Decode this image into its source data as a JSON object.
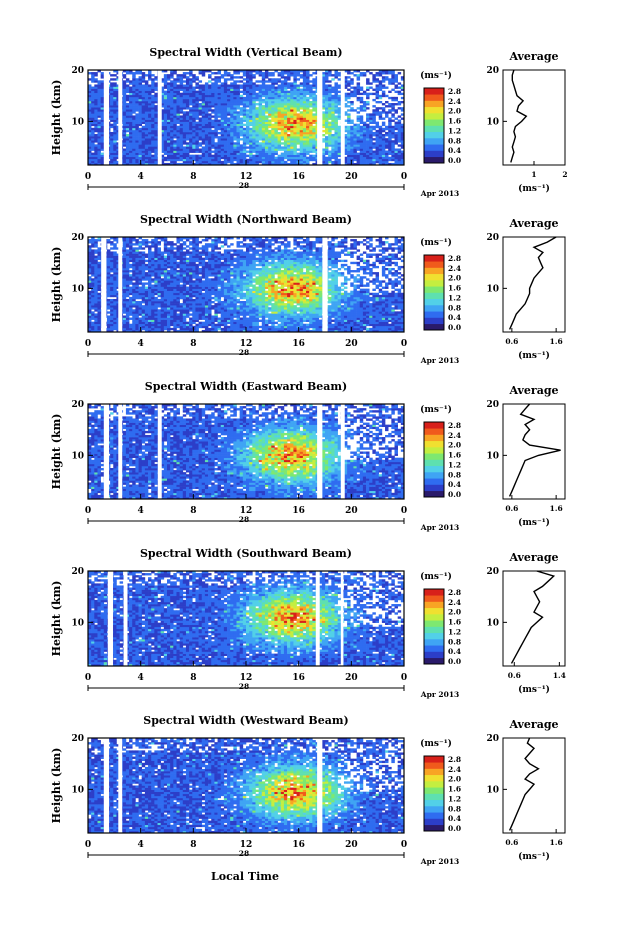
{
  "figure": {
    "bottom_xlabel": "Local Time",
    "date_label": "Apr 2013",
    "day_label": "28",
    "colorbar_unit": "(ms⁻¹)",
    "colorbar_ticks": [
      "2.8",
      "2.4",
      "2.0",
      "1.6",
      "1.2",
      "0.8",
      "0.4",
      "0.0"
    ],
    "colormap": [
      "#2a1a6a",
      "#2c3ec8",
      "#2f6cf0",
      "#3fa4f4",
      "#52d0e8",
      "#5ee0b0",
      "#7ee870",
      "#c4ee40",
      "#f0e030",
      "#f8a424",
      "#f05a1c",
      "#d8201a"
    ],
    "average_title": "Average",
    "average_xlabel": "(ms⁻¹)"
  },
  "chart_data": [
    {
      "type": "heatmap",
      "title": "Spectral Width (Vertical Beam)",
      "ylabel": "Height (km)",
      "xlabel": "Local Time",
      "xlim": [
        0,
        24
      ],
      "ylim": [
        1.5,
        20
      ],
      "x_ticks": [
        "0",
        "4",
        "8",
        "12",
        "16",
        "20",
        "0"
      ],
      "y_ticks": [
        "20",
        "10"
      ],
      "data_gaps_hours": [
        [
          1.2,
          1.6
        ],
        [
          2.3,
          2.6
        ],
        [
          5.3,
          5.6
        ],
        [
          17.4,
          17.8
        ],
        [
          19.2,
          19.5
        ]
      ],
      "hotspot": {
        "hour": 15.8,
        "height_km": 9.5,
        "value": 2.8
      },
      "average_profile": {
        "xlabel": "(ms⁻¹)",
        "x_ticks": [
          "1",
          "2"
        ],
        "xlim": [
          0,
          2
        ],
        "height_km": [
          2,
          3,
          4,
          5,
          6,
          7,
          8,
          9,
          10,
          11,
          12,
          13,
          14,
          15,
          16,
          17,
          18,
          19,
          20
        ],
        "value": [
          0.25,
          0.3,
          0.35,
          0.3,
          0.35,
          0.4,
          0.35,
          0.4,
          0.6,
          0.75,
          0.45,
          0.5,
          0.65,
          0.45,
          0.4,
          0.35,
          0.3,
          0.3,
          0.35
        ]
      }
    },
    {
      "type": "heatmap",
      "title": "Spectral Width (Northward Beam)",
      "ylabel": "Height (km)",
      "xlabel": "Local Time",
      "xlim": [
        0,
        24
      ],
      "ylim": [
        1.5,
        20
      ],
      "x_ticks": [
        "0",
        "4",
        "8",
        "12",
        "16",
        "20",
        "0"
      ],
      "y_ticks": [
        "20",
        "10"
      ],
      "data_gaps_hours": [
        [
          1.0,
          1.4
        ],
        [
          2.3,
          2.6
        ],
        [
          17.8,
          18.2
        ]
      ],
      "hotspot": {
        "hour": 15.5,
        "height_km": 10,
        "value": 2.8
      },
      "average_profile": {
        "xlabel": "(ms⁻¹)",
        "x_ticks": [
          "0.6",
          "1.6"
        ],
        "xlim": [
          0.4,
          1.8
        ],
        "height_km": [
          2,
          3,
          4,
          5,
          6,
          7,
          8,
          9,
          10,
          11,
          12,
          13,
          14,
          15,
          16,
          17,
          18,
          19,
          20
        ],
        "value": [
          0.55,
          0.6,
          0.65,
          0.7,
          0.8,
          0.9,
          0.95,
          1.0,
          1.0,
          1.05,
          1.1,
          1.2,
          1.3,
          1.25,
          1.2,
          1.3,
          1.1,
          1.4,
          1.6
        ]
      }
    },
    {
      "type": "heatmap",
      "title": "Spectral Width (Eastward Beam)",
      "ylabel": "Height (km)",
      "xlabel": "Local Time",
      "xlim": [
        0,
        24
      ],
      "ylim": [
        1.5,
        20
      ],
      "x_ticks": [
        "0",
        "4",
        "8",
        "12",
        "16",
        "20",
        "0"
      ],
      "y_ticks": [
        "20",
        "10"
      ],
      "data_gaps_hours": [
        [
          1.2,
          1.6
        ],
        [
          2.3,
          2.6
        ],
        [
          5.3,
          5.6
        ],
        [
          17.4,
          17.8
        ],
        [
          19.2,
          19.5
        ]
      ],
      "hotspot": {
        "hour": 15.5,
        "height_km": 10,
        "value": 2.8
      },
      "average_profile": {
        "xlabel": "(ms⁻¹)",
        "x_ticks": [
          "0.6",
          "1.6"
        ],
        "xlim": [
          0.4,
          1.8
        ],
        "height_km": [
          2,
          3,
          4,
          5,
          6,
          7,
          8,
          9,
          10,
          11,
          12,
          13,
          14,
          15,
          16,
          17,
          18,
          19,
          20
        ],
        "value": [
          0.55,
          0.6,
          0.65,
          0.7,
          0.75,
          0.8,
          0.85,
          0.9,
          1.2,
          1.7,
          1.0,
          0.85,
          0.9,
          1.0,
          0.9,
          1.1,
          0.8,
          0.9,
          1.0
        ]
      }
    },
    {
      "type": "heatmap",
      "title": "Spectral Width (Southward Beam)",
      "ylabel": "Height (km)",
      "xlabel": "Local Time",
      "xlim": [
        0,
        24
      ],
      "ylim": [
        1.5,
        20
      ],
      "x_ticks": [
        "0",
        "4",
        "8",
        "12",
        "16",
        "20",
        "0"
      ],
      "y_ticks": [
        "20",
        "10"
      ],
      "data_gaps_hours": [
        [
          1.5,
          1.9
        ],
        [
          2.7,
          3.0
        ],
        [
          17.3,
          17.6
        ],
        [
          19.2,
          19.4
        ]
      ],
      "hotspot": {
        "hour": 15.6,
        "height_km": 11,
        "value": 2.8
      },
      "average_profile": {
        "xlabel": "(ms⁻¹)",
        "x_ticks": [
          "0.6",
          "1.4"
        ],
        "xlim": [
          0.4,
          1.5
        ],
        "height_km": [
          2,
          3,
          4,
          5,
          6,
          7,
          8,
          9,
          10,
          11,
          12,
          13,
          14,
          15,
          16,
          17,
          18,
          19,
          20
        ],
        "value": [
          0.55,
          0.6,
          0.65,
          0.7,
          0.75,
          0.8,
          0.85,
          0.9,
          1.0,
          1.1,
          0.95,
          1.0,
          1.05,
          1.0,
          0.95,
          1.1,
          1.2,
          1.3,
          1.0
        ]
      }
    },
    {
      "type": "heatmap",
      "title": "Spectral Width (Westward Beam)",
      "ylabel": "Height (km)",
      "xlabel": "Local Time",
      "xlim": [
        0,
        24
      ],
      "ylim": [
        1.5,
        20
      ],
      "x_ticks": [
        "0",
        "4",
        "8",
        "12",
        "16",
        "20",
        "0"
      ],
      "y_ticks": [
        "20",
        "10"
      ],
      "data_gaps_hours": [
        [
          1.2,
          1.6
        ],
        [
          2.3,
          2.6
        ],
        [
          17.4,
          17.8
        ]
      ],
      "hotspot": {
        "hour": 15.8,
        "height_km": 9.5,
        "value": 2.8
      },
      "average_profile": {
        "xlabel": "(ms⁻¹)",
        "x_ticks": [
          "0.6",
          "1.6"
        ],
        "xlim": [
          0.4,
          1.8
        ],
        "height_km": [
          2,
          3,
          4,
          5,
          6,
          7,
          8,
          9,
          10,
          11,
          12,
          13,
          14,
          15,
          16,
          17,
          18,
          19,
          20
        ],
        "value": [
          0.55,
          0.6,
          0.65,
          0.7,
          0.75,
          0.8,
          0.85,
          0.9,
          1.0,
          1.1,
          0.9,
          1.0,
          1.2,
          1.0,
          0.9,
          1.0,
          1.1,
          0.95,
          1.0
        ]
      }
    }
  ]
}
